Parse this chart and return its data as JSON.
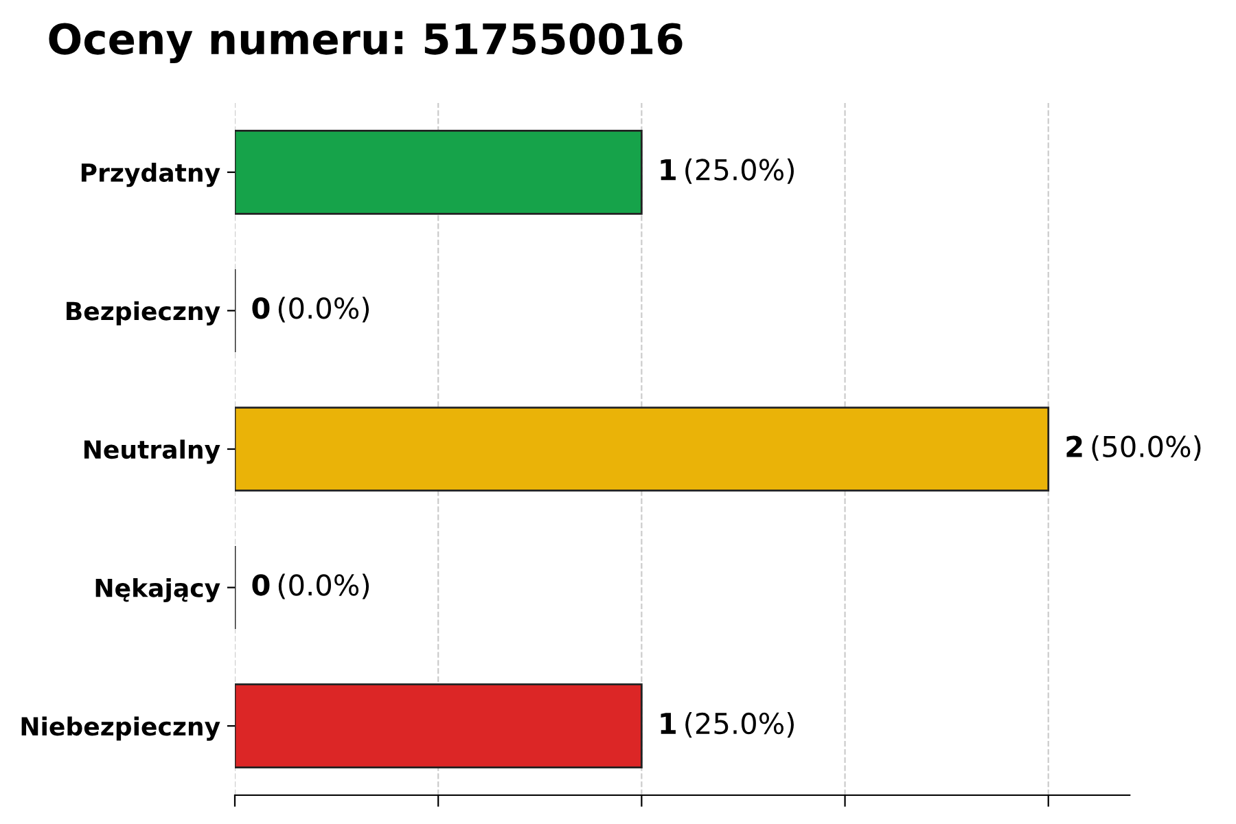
{
  "chart_data": {
    "type": "bar",
    "orientation": "horizontal",
    "title": "Oceny numeru: 517550016",
    "categories": [
      "Przydatny",
      "Bezpieczny",
      "Neutralny",
      "Nękający",
      "Niebezpieczny"
    ],
    "values": [
      1,
      0,
      2,
      0,
      1
    ],
    "colors": [
      "#16a34a",
      "#222222",
      "#eab308",
      "#222222",
      "#dc2626"
    ],
    "value_labels": [
      "1 (25.0%)",
      "0 (0.0%)",
      "2 (50.0%)",
      "0 (0.0%)",
      "1 (25.0%)"
    ],
    "xlim": [
      0,
      2.2
    ],
    "xticks": [
      {
        "value": 0,
        "label": null
      },
      {
        "value": 0.5,
        "label": null
      },
      {
        "value": 1,
        "label": null
      },
      {
        "value": 1.5,
        "label": null
      },
      {
        "value": 2,
        "label": null
      }
    ],
    "tick_labels": "y",
    "grid": "x",
    "legend": false
  }
}
